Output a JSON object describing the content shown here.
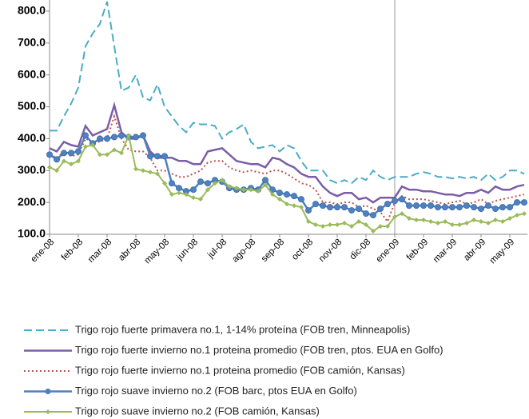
{
  "chart_data": {
    "type": "line",
    "categories": [
      "ene-08",
      null,
      null,
      null,
      "feb-08",
      null,
      null,
      null,
      "mar-08",
      null,
      null,
      null,
      "abr-08",
      null,
      null,
      null,
      "may-08",
      null,
      null,
      null,
      "jun-08",
      null,
      null,
      null,
      "jul-08",
      null,
      null,
      null,
      "ago-08",
      null,
      null,
      null,
      "sep-08",
      null,
      null,
      null,
      "oct-08",
      null,
      null,
      null,
      "nov-08",
      null,
      null,
      null,
      "dic-08",
      null,
      null,
      null,
      "ene-09",
      null,
      null,
      null,
      "feb-09",
      null,
      null,
      null,
      "mar-09",
      null,
      null,
      null,
      "abr-09",
      null,
      null,
      null,
      "may-09",
      null,
      null
    ],
    "ylim": [
      100,
      835
    ],
    "yticks": [
      {
        "value": 100,
        "label": "100.0"
      },
      {
        "value": 200,
        "label": "200.0"
      },
      {
        "value": 300,
        "label": "300.0"
      },
      {
        "value": 400,
        "label": "400.0"
      },
      {
        "value": 500,
        "label": "500.0"
      },
      {
        "value": 600,
        "label": "600.0"
      },
      {
        "value": 700,
        "label": "700.0"
      },
      {
        "value": 800,
        "label": "800.0"
      }
    ],
    "series": [
      {
        "name": "Trigo rojo fuerte primavera no.1, 1-14% proteína (FOB tren, Minneapolis)",
        "color": "#4bacc6",
        "style": "dashed",
        "values": [
          425,
          425,
          470,
          510,
          560,
          690,
          730,
          760,
          830,
          690,
          550,
          560,
          600,
          530,
          520,
          570,
          500,
          470,
          440,
          420,
          450,
          445,
          445,
          440,
          400,
          420,
          430,
          445,
          390,
          370,
          375,
          380,
          360,
          380,
          370,
          330,
          300,
          300,
          300,
          270,
          260,
          270,
          260,
          280,
          270,
          300,
          280,
          270,
          280,
          280,
          280,
          290,
          295,
          290,
          280,
          280,
          275,
          280,
          275,
          280,
          270,
          290,
          270,
          280,
          300,
          300,
          290
        ]
      },
      {
        "name": "Trigo rojo fuerte invierno no.1 proteina promedio (FOB tren, ptos. EUA en Golfo)",
        "color": "#7b5ea7",
        "style": "solid",
        "values": [
          370,
          360,
          390,
          380,
          375,
          440,
          410,
          420,
          430,
          505,
          420,
          400,
          400,
          410,
          360,
          340,
          340,
          340,
          330,
          330,
          320,
          320,
          360,
          365,
          370,
          350,
          330,
          325,
          320,
          320,
          310,
          340,
          335,
          320,
          310,
          290,
          280,
          280,
          250,
          230,
          220,
          230,
          230,
          210,
          215,
          200,
          215,
          215,
          215,
          250,
          240,
          240,
          235,
          235,
          230,
          225,
          225,
          220,
          230,
          230,
          240,
          230,
          250,
          240,
          240,
          250,
          255
        ]
      },
      {
        "name": "Trigo rojo fuerte invierno no.1 proteina promedio (FOB camión, Kansas)",
        "color": "#c0504d",
        "style": "dotted",
        "values": [
          350,
          340,
          360,
          345,
          350,
          400,
          390,
          390,
          400,
          470,
          400,
          365,
          360,
          360,
          340,
          300,
          300,
          290,
          280,
          280,
          290,
          300,
          325,
          330,
          330,
          310,
          300,
          295,
          300,
          295,
          290,
          300,
          300,
          290,
          275,
          260,
          255,
          240,
          200,
          200,
          195,
          200,
          200,
          185,
          190,
          180,
          170,
          140,
          200,
          220,
          210,
          210,
          210,
          205,
          200,
          195,
          200,
          205,
          195,
          200,
          210,
          195,
          205,
          210,
          215,
          220,
          225
        ]
      },
      {
        "name": "Trigo rojo suave invierno no.2 (FOB barc, ptos EUA en Golfo)",
        "color": "#4f81bd",
        "style": "circle",
        "values": [
          350,
          335,
          355,
          355,
          360,
          410,
          385,
          400,
          400,
          405,
          410,
          405,
          405,
          410,
          345,
          345,
          345,
          260,
          245,
          235,
          240,
          265,
          260,
          270,
          265,
          245,
          240,
          240,
          245,
          240,
          270,
          240,
          230,
          225,
          220,
          210,
          175,
          195,
          190,
          185,
          185,
          185,
          175,
          180,
          165,
          160,
          180,
          195,
          205,
          210,
          190,
          190,
          190,
          190,
          185,
          185,
          185,
          185,
          190,
          185,
          180,
          190,
          180,
          185,
          185,
          200,
          200
        ]
      },
      {
        "name": "Trigo rojo suave invierno no.2 (FOB camión, Kansas)",
        "color": "#9bbb59",
        "style": "diamond",
        "values": [
          310,
          300,
          330,
          320,
          330,
          375,
          380,
          350,
          350,
          365,
          355,
          410,
          305,
          300,
          295,
          290,
          260,
          225,
          230,
          225,
          215,
          210,
          240,
          260,
          270,
          250,
          245,
          240,
          240,
          235,
          255,
          225,
          210,
          195,
          190,
          185,
          140,
          130,
          125,
          130,
          130,
          135,
          125,
          140,
          130,
          110,
          125,
          125,
          155,
          165,
          150,
          145,
          145,
          140,
          135,
          140,
          130,
          130,
          135,
          145,
          140,
          135,
          145,
          140,
          150,
          160,
          165
        ]
      }
    ]
  }
}
